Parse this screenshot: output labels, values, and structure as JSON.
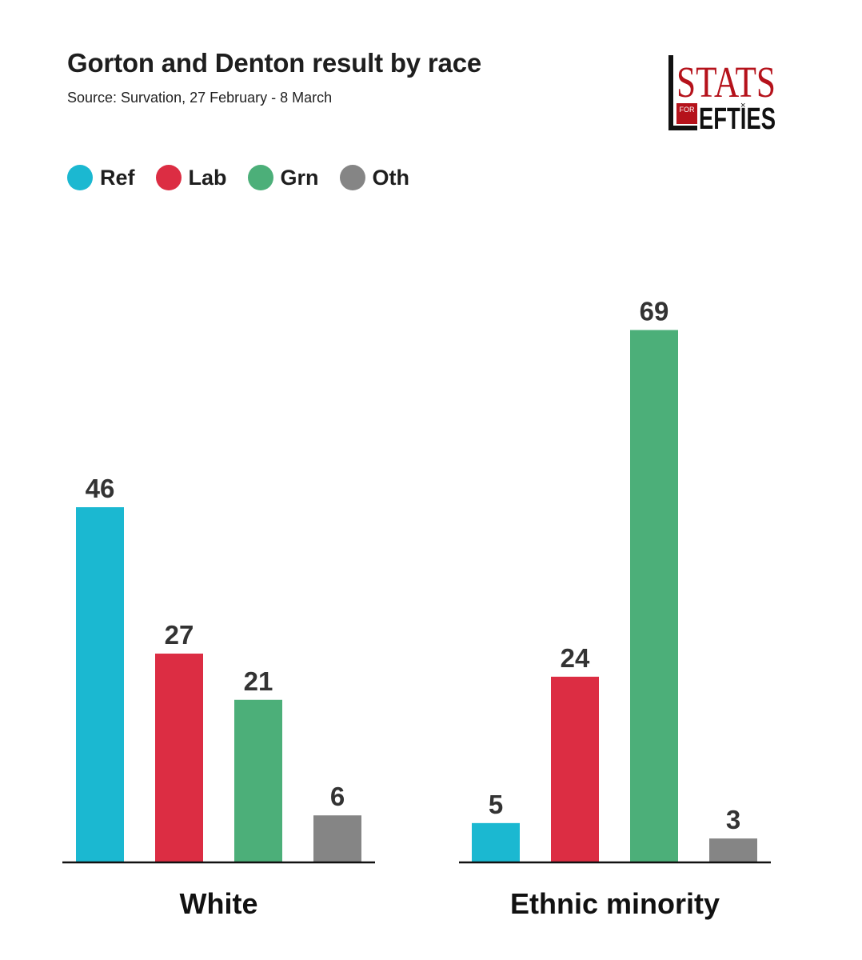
{
  "header": {
    "title": "Gorton and Denton result by race",
    "subtitle": "Source: Survation, 27 February - 8 March"
  },
  "logo": {
    "line1": "STATS",
    "for": "FOR",
    "line2": "LEFTIES",
    "colors": {
      "red": "#b5121b",
      "black": "#111111"
    }
  },
  "colors": {
    "Ref": "#1bb8d1",
    "Lab": "#dc2d43",
    "Grn": "#4caf79",
    "Oth": "#858585"
  },
  "legend": [
    {
      "label": "Ref",
      "color": "#1bb8d1"
    },
    {
      "label": "Lab",
      "color": "#dc2d43"
    },
    {
      "label": "Grn",
      "color": "#4caf79"
    },
    {
      "label": "Oth",
      "color": "#858585"
    }
  ],
  "chart_data": {
    "type": "bar",
    "title": "Gorton and Denton result by race",
    "categories": [
      "White",
      "Ethnic minority"
    ],
    "series": [
      {
        "name": "Ref",
        "values": [
          46,
          5
        ]
      },
      {
        "name": "Lab",
        "values": [
          27,
          24
        ]
      },
      {
        "name": "Grn",
        "values": [
          21,
          69
        ]
      },
      {
        "name": "Oth",
        "values": [
          6,
          3
        ]
      }
    ],
    "ylim": [
      0,
      69
    ],
    "grid": false,
    "legend_position": "top-left",
    "data_labels": true
  }
}
